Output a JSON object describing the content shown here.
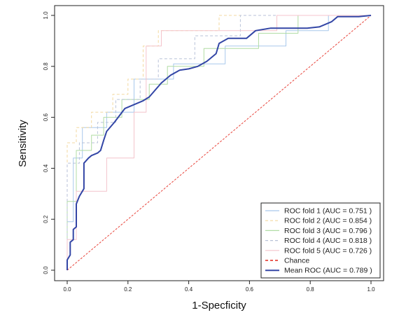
{
  "chart_data": {
    "type": "line",
    "xlabel": "1-Specficity",
    "ylabel": "Sensitivity",
    "xlim": [
      0,
      1
    ],
    "ylim": [
      0,
      1
    ],
    "xticks": [
      "0.0",
      "0.2",
      "0.4",
      "0.6",
      "0.8",
      "1.0"
    ],
    "yticks": [
      "0.0",
      "0.2",
      "0.4",
      "0.6",
      "0.8",
      "1.0"
    ],
    "grid": false,
    "legend_position": "bottom-right",
    "series": [
      {
        "name": "ROC fold 1 (AUC = 0.751 )",
        "color": "#a8c8ec",
        "dash": "solid",
        "points": [
          [
            0,
            0
          ],
          [
            0,
            0.19
          ],
          [
            0.02,
            0.19
          ],
          [
            0.02,
            0.44
          ],
          [
            0.05,
            0.44
          ],
          [
            0.05,
            0.56
          ],
          [
            0.13,
            0.56
          ],
          [
            0.13,
            0.62
          ],
          [
            0.22,
            0.62
          ],
          [
            0.22,
            0.75
          ],
          [
            0.35,
            0.75
          ],
          [
            0.35,
            0.81
          ],
          [
            0.52,
            0.81
          ],
          [
            0.52,
            0.88
          ],
          [
            0.72,
            0.88
          ],
          [
            0.72,
            0.94
          ],
          [
            0.86,
            0.94
          ],
          [
            0.86,
            1.0
          ],
          [
            1,
            1
          ]
        ]
      },
      {
        "name": "ROC fold 2 (AUC = 0.854 )",
        "color": "#f3d9a0",
        "dash": "dashed",
        "points": [
          [
            0,
            0
          ],
          [
            0,
            0.5
          ],
          [
            0.03,
            0.5
          ],
          [
            0.03,
            0.56
          ],
          [
            0.08,
            0.56
          ],
          [
            0.08,
            0.62
          ],
          [
            0.15,
            0.62
          ],
          [
            0.15,
            0.69
          ],
          [
            0.2,
            0.69
          ],
          [
            0.2,
            0.75
          ],
          [
            0.25,
            0.75
          ],
          [
            0.25,
            0.88
          ],
          [
            0.3,
            0.88
          ],
          [
            0.3,
            0.94
          ],
          [
            0.5,
            0.94
          ],
          [
            0.5,
            1.0
          ],
          [
            1,
            1
          ]
        ]
      },
      {
        "name": "ROC fold 3 (AUC = 0.796 )",
        "color": "#b0dca4",
        "dash": "solid",
        "points": [
          [
            0,
            0
          ],
          [
            0,
            0.27
          ],
          [
            0.03,
            0.27
          ],
          [
            0.03,
            0.47
          ],
          [
            0.08,
            0.47
          ],
          [
            0.08,
            0.53
          ],
          [
            0.12,
            0.53
          ],
          [
            0.12,
            0.6
          ],
          [
            0.18,
            0.6
          ],
          [
            0.18,
            0.67
          ],
          [
            0.27,
            0.67
          ],
          [
            0.27,
            0.73
          ],
          [
            0.33,
            0.73
          ],
          [
            0.33,
            0.8
          ],
          [
            0.45,
            0.8
          ],
          [
            0.45,
            0.87
          ],
          [
            0.63,
            0.87
          ],
          [
            0.63,
            0.93
          ],
          [
            0.76,
            0.93
          ],
          [
            0.76,
            1.0
          ],
          [
            1,
            1
          ]
        ]
      },
      {
        "name": "ROC fold 4 (AUC = 0.818 )",
        "color": "#b8c2d8",
        "dash": "dashed",
        "points": [
          [
            0,
            0
          ],
          [
            0,
            0.42
          ],
          [
            0.04,
            0.42
          ],
          [
            0.04,
            0.5
          ],
          [
            0.1,
            0.5
          ],
          [
            0.1,
            0.58
          ],
          [
            0.16,
            0.58
          ],
          [
            0.16,
            0.67
          ],
          [
            0.24,
            0.67
          ],
          [
            0.24,
            0.75
          ],
          [
            0.3,
            0.75
          ],
          [
            0.3,
            0.83
          ],
          [
            0.42,
            0.83
          ],
          [
            0.42,
            0.92
          ],
          [
            0.57,
            0.92
          ],
          [
            0.57,
            1.0
          ],
          [
            1,
            1
          ]
        ]
      },
      {
        "name": "ROC fold 5 (AUC = 0.726 )",
        "color": "#f4c4cc",
        "dash": "solid",
        "points": [
          [
            0,
            0
          ],
          [
            0,
            0.12
          ],
          [
            0.03,
            0.12
          ],
          [
            0.03,
            0.31
          ],
          [
            0.13,
            0.31
          ],
          [
            0.13,
            0.44
          ],
          [
            0.22,
            0.44
          ],
          [
            0.22,
            0.62
          ],
          [
            0.26,
            0.62
          ],
          [
            0.26,
            0.88
          ],
          [
            0.31,
            0.88
          ],
          [
            0.31,
            0.94
          ],
          [
            0.69,
            0.94
          ],
          [
            0.69,
            1.0
          ],
          [
            1,
            1
          ]
        ]
      },
      {
        "name": "Chance",
        "color": "#e8453c",
        "dash": "dashed",
        "points": [
          [
            0,
            0
          ],
          [
            1,
            1
          ]
        ]
      },
      {
        "name": "Mean ROC (AUC = 0.789 )",
        "color": "#3346a6",
        "dash": "solid",
        "points": [
          [
            0,
            0
          ],
          [
            0,
            0.04
          ],
          [
            0.01,
            0.06
          ],
          [
            0.01,
            0.11
          ],
          [
            0.02,
            0.12
          ],
          [
            0.02,
            0.16
          ],
          [
            0.03,
            0.17
          ],
          [
            0.03,
            0.26
          ],
          [
            0.04,
            0.29
          ],
          [
            0.05,
            0.31
          ],
          [
            0.055,
            0.32
          ],
          [
            0.055,
            0.42
          ],
          [
            0.07,
            0.44
          ],
          [
            0.08,
            0.45
          ],
          [
            0.1,
            0.46
          ],
          [
            0.11,
            0.47
          ],
          [
            0.12,
            0.51
          ],
          [
            0.13,
            0.545
          ],
          [
            0.155,
            0.58
          ],
          [
            0.19,
            0.635
          ],
          [
            0.25,
            0.665
          ],
          [
            0.27,
            0.68
          ],
          [
            0.31,
            0.735
          ],
          [
            0.34,
            0.765
          ],
          [
            0.37,
            0.785
          ],
          [
            0.4,
            0.79
          ],
          [
            0.43,
            0.8
          ],
          [
            0.46,
            0.82
          ],
          [
            0.49,
            0.85
          ],
          [
            0.5,
            0.89
          ],
          [
            0.53,
            0.91
          ],
          [
            0.59,
            0.91
          ],
          [
            0.62,
            0.94
          ],
          [
            0.67,
            0.95
          ],
          [
            0.73,
            0.95
          ],
          [
            0.79,
            0.95
          ],
          [
            0.83,
            0.955
          ],
          [
            0.87,
            0.975
          ],
          [
            0.89,
            0.995
          ],
          [
            0.96,
            0.995
          ],
          [
            1.0,
            1.0
          ]
        ]
      }
    ]
  }
}
